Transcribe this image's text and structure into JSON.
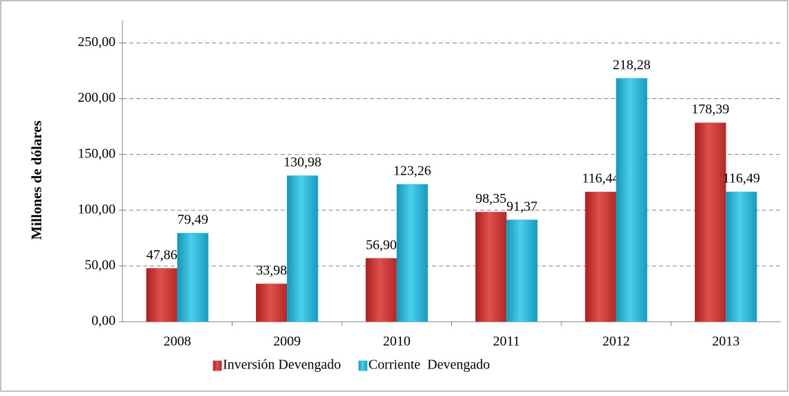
{
  "chart_data": {
    "type": "bar",
    "y_label": "Millones de dólares",
    "categories": [
      "2008",
      "2009",
      "2010",
      "2011",
      "2012",
      "2013"
    ],
    "series": [
      {
        "name": "Inversión Devengado",
        "color": "#d0403c",
        "values": [
          47.86,
          33.98,
          56.9,
          98.35,
          116.44,
          178.39
        ],
        "value_labels": [
          "47,86",
          "33,98",
          "56,90",
          "98,35",
          "116,44",
          "178,39"
        ]
      },
      {
        "name": "Corriente  Devengado",
        "color": "#2fb8d8",
        "values": [
          79.49,
          130.98,
          123.26,
          91.37,
          218.28,
          116.49
        ],
        "value_labels": [
          "79,49",
          "130,98",
          "123,26",
          "91,37",
          "218,28",
          "116,49"
        ]
      }
    ],
    "ylim": [
      0,
      270
    ],
    "yticks": [
      {
        "value": 0,
        "label": "0,00"
      },
      {
        "value": 50,
        "label": "50,00"
      },
      {
        "value": 100,
        "label": "100,00"
      },
      {
        "value": 150,
        "label": "150,00"
      },
      {
        "value": 200,
        "label": "200,00"
      },
      {
        "value": 250,
        "label": "250,00"
      }
    ],
    "grid": true,
    "legend": "bottom"
  }
}
